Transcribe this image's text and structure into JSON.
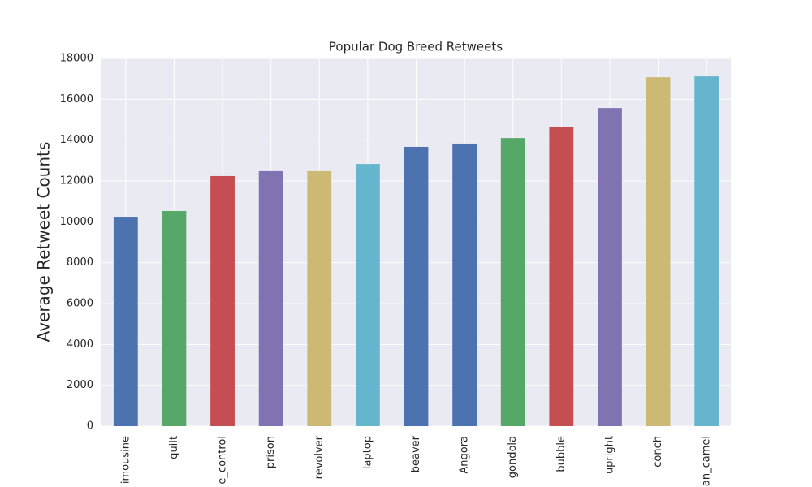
{
  "chart_data": {
    "type": "bar",
    "title": "Popular Dog Breed Retweets",
    "y_label": "Average Retweet Counts",
    "categories": [
      "imousine",
      "quilt",
      "e_control",
      "prison",
      "revolver",
      "laptop",
      "beaver",
      "Angora",
      "gondola",
      "bubble",
      "upright",
      "conch",
      "an_camel"
    ],
    "values": [
      10250,
      10530,
      12240,
      12480,
      12480,
      12830,
      13670,
      13830,
      14100,
      14660,
      15570,
      17080,
      17120
    ],
    "colors": [
      "#4c72b0",
      "#55a868",
      "#c44e52",
      "#8172b2",
      "#ccb974",
      "#64b5cd",
      "#4c72b0",
      "#4c72b0",
      "#55a868",
      "#c44e52",
      "#8172b2",
      "#ccb974",
      "#64b5cd"
    ],
    "ylim": [
      0,
      18000
    ],
    "yticks": [
      0,
      2000,
      4000,
      6000,
      8000,
      10000,
      12000,
      14000,
      16000,
      18000
    ],
    "grid": true
  }
}
